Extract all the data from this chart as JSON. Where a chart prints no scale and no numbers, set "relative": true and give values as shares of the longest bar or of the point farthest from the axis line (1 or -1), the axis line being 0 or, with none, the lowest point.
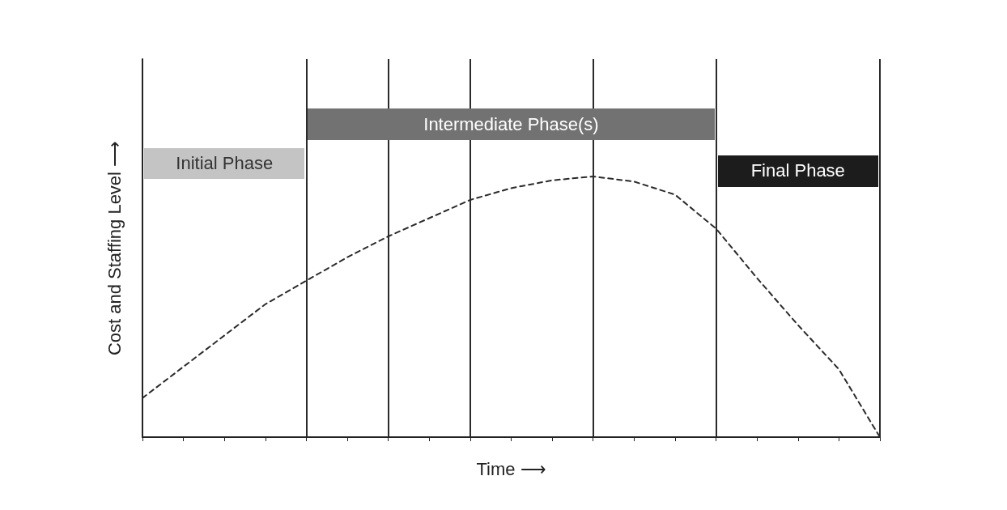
{
  "chart_data": {
    "type": "line",
    "relative": true,
    "xlabel": "Time ⟶",
    "ylabel": "Cost and Staffing Level ⟶",
    "grid": "x",
    "marker": "none",
    "line_style": "dashed",
    "categories": [
      null,
      null,
      null,
      null,
      null,
      null,
      null,
      null,
      null,
      null,
      null,
      null,
      null,
      null,
      null,
      null,
      null,
      null,
      null
    ],
    "series": [
      {
        "color": "#2b2b2b",
        "values": [
          0.15,
          0.27,
          0.39,
          0.51,
          0.6,
          0.69,
          0.77,
          0.84,
          0.91,
          0.955,
          0.985,
          1,
          0.98,
          0.93,
          0.8,
          0.61,
          0.43,
          0.26,
          0
        ]
      }
    ],
    "annotations": [
      "Initial Phase",
      "Intermediate Phase(s)",
      "Final Phase"
    ]
  }
}
